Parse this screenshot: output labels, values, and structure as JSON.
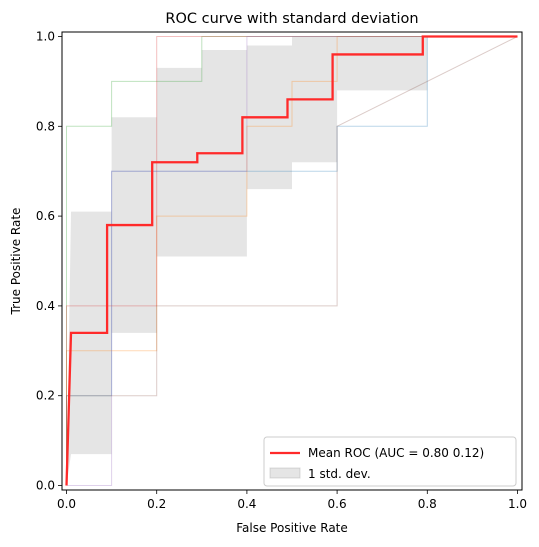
{
  "chart_data": {
    "type": "line",
    "title": "ROC curve with standard deviation",
    "xlabel": "False Positive Rate",
    "ylabel": "True Positive Rate",
    "xlim": [
      -0.01,
      1.01
    ],
    "ylim": [
      -0.01,
      1.01
    ],
    "xticks": [
      0.0,
      0.2,
      0.4,
      0.6,
      0.8,
      1.0
    ],
    "yticks": [
      0.0,
      0.2,
      0.4,
      0.6,
      0.8,
      1.0
    ],
    "xtick_labels": [
      "0.0",
      "0.2",
      "0.4",
      "0.6",
      "0.8",
      "1.0"
    ],
    "ytick_labels": [
      "0.0",
      "0.2",
      "0.4",
      "0.6",
      "0.8",
      "1.0"
    ],
    "grid": false,
    "legend_position": "lower-right",
    "legend": {
      "mean_label": "Mean ROC (AUC = 0.80 0.12)",
      "band_label": "1 std. dev."
    },
    "mean_roc": {
      "color": "#ff2a2a",
      "x": [
        0.0,
        0.01,
        0.01,
        0.09,
        0.09,
        0.1,
        0.1,
        0.19,
        0.19,
        0.2,
        0.2,
        0.29,
        0.29,
        0.3,
        0.3,
        0.39,
        0.39,
        0.4,
        0.4,
        0.49,
        0.49,
        0.5,
        0.5,
        0.59,
        0.59,
        0.6,
        0.6,
        0.79,
        0.79,
        0.8,
        0.8,
        0.81,
        0.81,
        1.0
      ],
      "y": [
        0.0,
        0.34,
        0.34,
        0.34,
        0.58,
        0.58,
        0.58,
        0.58,
        0.72,
        0.72,
        0.72,
        0.72,
        0.74,
        0.74,
        0.74,
        0.74,
        0.82,
        0.82,
        0.82,
        0.82,
        0.86,
        0.86,
        0.86,
        0.86,
        0.96,
        0.96,
        0.96,
        0.96,
        1.0,
        1.0,
        1.0,
        1.0,
        1.0,
        1.0
      ]
    },
    "std_band": {
      "color": "#a8a8a8",
      "x": [
        0.0,
        0.01,
        0.01,
        0.1,
        0.1,
        0.2,
        0.2,
        0.3,
        0.3,
        0.4,
        0.4,
        0.5,
        0.5,
        0.6,
        0.6,
        0.8,
        0.8,
        1.0
      ],
      "upper": [
        0.0,
        0.61,
        0.61,
        0.61,
        0.82,
        0.82,
        0.93,
        0.93,
        0.97,
        0.97,
        0.98,
        0.98,
        1.0,
        1.0,
        1.0,
        1.0,
        1.0,
        1.0
      ],
      "lower": [
        0.0,
        0.07,
        0.07,
        0.07,
        0.34,
        0.34,
        0.51,
        0.51,
        0.51,
        0.51,
        0.66,
        0.66,
        0.72,
        0.72,
        0.88,
        0.88,
        1.0,
        1.0
      ]
    },
    "fold_curves": [
      {
        "color": "#1f77b4",
        "x": [
          0,
          0,
          0.1,
          0.1,
          0.6,
          0.6,
          0.8,
          0.8,
          1.0
        ],
        "y": [
          0,
          0.2,
          0.2,
          0.7,
          0.7,
          0.8,
          0.8,
          1.0,
          1.0
        ]
      },
      {
        "color": "#ff7f0e",
        "x": [
          0,
          0,
          0.2,
          0.2,
          0.4,
          0.4,
          0.5,
          0.5,
          0.6,
          0.6,
          1.0
        ],
        "y": [
          0,
          0.3,
          0.3,
          0.6,
          0.6,
          0.8,
          0.8,
          0.9,
          0.9,
          1.0,
          1.0
        ]
      },
      {
        "color": "#2ca02c",
        "x": [
          0,
          0,
          0.1,
          0.1,
          0.3,
          0.3,
          1.0
        ],
        "y": [
          0,
          0.8,
          0.8,
          0.9,
          0.9,
          1.0,
          1.0
        ]
      },
      {
        "color": "#d62728",
        "x": [
          0,
          0,
          0.2,
          0.2,
          1.0
        ],
        "y": [
          0,
          0.4,
          0.4,
          1.0,
          1.0
        ]
      },
      {
        "color": "#9467bd",
        "x": [
          0,
          0.1,
          0.1,
          0.4,
          0.4,
          1.0
        ],
        "y": [
          0,
          0,
          0.7,
          0.7,
          1.0,
          1.0
        ]
      },
      {
        "color": "#8c564b",
        "x": [
          0,
          0,
          0.2,
          0.2,
          0.6,
          0.6,
          1.0
        ],
        "y": [
          0,
          0.2,
          0.2,
          0.4,
          0.4,
          0.8,
          1.0
        ]
      }
    ]
  }
}
